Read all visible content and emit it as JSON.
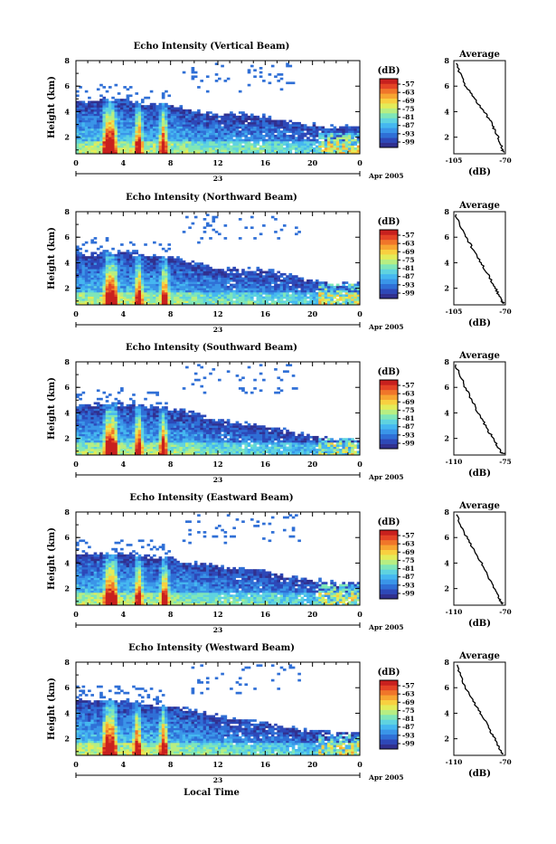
{
  "xlabel": "Local Time",
  "date_label": "Apr 2005",
  "day_label": "23",
  "x_ticks": [
    "0",
    "4",
    "8",
    "12",
    "16",
    "20",
    "0"
  ],
  "y_ticks": [
    "2",
    "4",
    "6",
    "8"
  ],
  "units_label": "(dB)",
  "colorbar_ticks": [
    "-57",
    "-63",
    "-69",
    "-75",
    "-81",
    "-87",
    "-93",
    "-99"
  ],
  "colors": {
    "scale": [
      "#30308f",
      "#2d48b8",
      "#2f6fd6",
      "#3a95e8",
      "#45b7f0",
      "#5fd3e0",
      "#7fe6b8",
      "#b7ee82",
      "#e3ec58",
      "#f8d040",
      "#f7a532",
      "#f0762a",
      "#e44426",
      "#c8201e"
    ]
  },
  "panels": [
    {
      "title": "Echo Intensity (Vertical Beam)",
      "ylabel": "Height (km)",
      "avg_title": "Average",
      "avg_xlabel": "(dB)",
      "avg_xticks": [
        "-105",
        "-70"
      ]
    },
    {
      "title": "Echo Intensity (Northward Beam)",
      "ylabel": "Height (km)",
      "avg_title": "Average",
      "avg_xlabel": "(dB)",
      "avg_xticks": [
        "-105",
        "-70"
      ]
    },
    {
      "title": "Echo Intensity (Southward Beam)",
      "ylabel": "Height (km)",
      "avg_title": "Average",
      "avg_xlabel": "(dB)",
      "avg_xticks": [
        "-110",
        "-75"
      ]
    },
    {
      "title": "Echo Intensity (Eastward Beam)",
      "ylabel": "Height (km)",
      "avg_title": "Average",
      "avg_xlabel": "(dB)",
      "avg_xticks": [
        "-110",
        "-70"
      ]
    },
    {
      "title": "Echo Intensity (Westward Beam)",
      "ylabel": "Height (km)",
      "avg_title": "Average",
      "avg_xlabel": "(dB)",
      "avg_xticks": [
        "-110",
        "-70"
      ]
    }
  ],
  "chart_data": [
    {
      "type": "heatmap",
      "title": "Echo Intensity (Vertical Beam)",
      "xlabel": "",
      "ylabel": "Height (km)",
      "xlim": [
        0,
        24
      ],
      "ylim": [
        0.7,
        8
      ],
      "clim": [
        -99,
        -57
      ],
      "echo_top_km": [
        {
          "t": 0,
          "h": 4.8
        },
        {
          "t": 2,
          "h": 5.0
        },
        {
          "t": 4,
          "h": 5.0
        },
        {
          "t": 6,
          "h": 4.6
        },
        {
          "t": 8,
          "h": 4.6
        },
        {
          "t": 10,
          "h": 4.1
        },
        {
          "t": 12,
          "h": 3.8
        },
        {
          "t": 14,
          "h": 3.8
        },
        {
          "t": 16,
          "h": 3.6
        },
        {
          "t": 18,
          "h": 3.2
        },
        {
          "t": 20,
          "h": 3.0
        },
        {
          "t": 22,
          "h": 2.8
        },
        {
          "t": 24,
          "h": 2.8
        }
      ],
      "convective_peaks_hours": [
        2.6,
        3.1,
        5.3,
        7.4
      ]
    },
    {
      "type": "line",
      "title": "Average",
      "xlabel": "(dB)",
      "ylabel": "",
      "xlim": [
        -105,
        -70
      ],
      "ylim": [
        0.7,
        8
      ],
      "x": [
        -103,
        -101,
        -98,
        -94,
        -90,
        -86,
        -82,
        -79,
        -77,
        -75,
        -73,
        -72,
        -71
      ],
      "y": [
        7.8,
        7.0,
        6.2,
        5.5,
        4.9,
        4.2,
        3.6,
        3.0,
        2.5,
        2.0,
        1.5,
        1.0,
        0.8
      ]
    },
    {
      "type": "heatmap",
      "title": "Echo Intensity (Northward Beam)",
      "xlabel": "",
      "ylabel": "Height (km)",
      "xlim": [
        0,
        24
      ],
      "ylim": [
        0.7,
        8
      ],
      "clim": [
        -99,
        -57
      ],
      "echo_top_km": [
        {
          "t": 0,
          "h": 4.6
        },
        {
          "t": 2,
          "h": 4.8
        },
        {
          "t": 4,
          "h": 4.8
        },
        {
          "t": 6,
          "h": 4.6
        },
        {
          "t": 8,
          "h": 4.4
        },
        {
          "t": 10,
          "h": 4.0
        },
        {
          "t": 12,
          "h": 3.6
        },
        {
          "t": 14,
          "h": 3.5
        },
        {
          "t": 16,
          "h": 3.4
        },
        {
          "t": 18,
          "h": 3.1
        },
        {
          "t": 20,
          "h": 2.6
        },
        {
          "t": 22,
          "h": 2.4
        },
        {
          "t": 24,
          "h": 2.4
        }
      ],
      "convective_peaks_hours": [
        2.7,
        3.2,
        5.3,
        7.5
      ]
    },
    {
      "type": "line",
      "title": "Average",
      "xlabel": "(dB)",
      "ylabel": "",
      "xlim": [
        -105,
        -70
      ],
      "ylim": [
        0.7,
        8
      ],
      "x": [
        -104,
        -101,
        -98,
        -94,
        -91,
        -87,
        -84,
        -81,
        -78,
        -76,
        -74,
        -72,
        -71
      ],
      "y": [
        7.8,
        7.0,
        6.2,
        5.5,
        4.8,
        4.1,
        3.5,
        2.9,
        2.3,
        1.8,
        1.3,
        0.9,
        0.8
      ]
    },
    {
      "type": "heatmap",
      "title": "Echo Intensity (Southward Beam)",
      "xlabel": "",
      "ylabel": "Height (km)",
      "xlim": [
        0,
        24
      ],
      "ylim": [
        0.7,
        8
      ],
      "clim": [
        -99,
        -57
      ],
      "echo_top_km": [
        {
          "t": 0,
          "h": 4.6
        },
        {
          "t": 2,
          "h": 4.7
        },
        {
          "t": 4,
          "h": 4.8
        },
        {
          "t": 6,
          "h": 4.5
        },
        {
          "t": 8,
          "h": 4.4
        },
        {
          "t": 10,
          "h": 4.0
        },
        {
          "t": 12,
          "h": 3.4
        },
        {
          "t": 14,
          "h": 3.2
        },
        {
          "t": 16,
          "h": 3.0
        },
        {
          "t": 18,
          "h": 2.6
        },
        {
          "t": 20,
          "h": 2.2
        },
        {
          "t": 22,
          "h": 2.0
        },
        {
          "t": 24,
          "h": 2.0
        }
      ],
      "convective_peaks_hours": [
        2.7,
        3.2,
        5.3,
        7.4
      ]
    },
    {
      "type": "line",
      "title": "Average",
      "xlabel": "(dB)",
      "ylabel": "",
      "xlim": [
        -110,
        -75
      ],
      "ylim": [
        0.7,
        8
      ],
      "x": [
        -109,
        -106,
        -103,
        -100,
        -97,
        -94,
        -91,
        -88,
        -85,
        -82,
        -80,
        -78,
        -76
      ],
      "y": [
        7.8,
        7.0,
        6.2,
        5.5,
        4.8,
        4.1,
        3.5,
        2.9,
        2.3,
        1.8,
        1.3,
        0.9,
        0.8
      ]
    },
    {
      "type": "heatmap",
      "title": "Echo Intensity (Eastward Beam)",
      "xlabel": "",
      "ylabel": "Height (km)",
      "xlim": [
        0,
        24
      ],
      "ylim": [
        0.7,
        8
      ],
      "clim": [
        -99,
        -57
      ],
      "echo_top_km": [
        {
          "t": 0,
          "h": 4.8
        },
        {
          "t": 2,
          "h": 4.8
        },
        {
          "t": 4,
          "h": 4.8
        },
        {
          "t": 6,
          "h": 4.6
        },
        {
          "t": 8,
          "h": 4.4
        },
        {
          "t": 10,
          "h": 4.1
        },
        {
          "t": 12,
          "h": 3.8
        },
        {
          "t": 14,
          "h": 3.6
        },
        {
          "t": 16,
          "h": 3.4
        },
        {
          "t": 18,
          "h": 3.0
        },
        {
          "t": 20,
          "h": 2.7
        },
        {
          "t": 22,
          "h": 2.4
        },
        {
          "t": 24,
          "h": 2.4
        }
      ],
      "convective_peaks_hours": [
        2.7,
        3.2,
        5.3,
        7.5
      ]
    },
    {
      "type": "line",
      "title": "Average",
      "xlabel": "(dB)",
      "ylabel": "",
      "xlim": [
        -110,
        -70
      ],
      "ylim": [
        0.7,
        8
      ],
      "x": [
        -108,
        -105,
        -101,
        -97,
        -93,
        -89,
        -86,
        -83,
        -80,
        -77,
        -75,
        -73,
        -72
      ],
      "y": [
        7.8,
        7.0,
        6.2,
        5.5,
        4.8,
        4.1,
        3.5,
        2.9,
        2.3,
        1.8,
        1.3,
        0.9,
        0.8
      ]
    },
    {
      "type": "heatmap",
      "title": "Echo Intensity (Westward Beam)",
      "xlabel": "",
      "ylabel": "Height (km)",
      "xlim": [
        0,
        24
      ],
      "ylim": [
        0.7,
        8
      ],
      "clim": [
        -99,
        -57
      ],
      "echo_top_km": [
        {
          "t": 0,
          "h": 5.0
        },
        {
          "t": 2,
          "h": 5.0
        },
        {
          "t": 4,
          "h": 5.0
        },
        {
          "t": 6,
          "h": 4.8
        },
        {
          "t": 8,
          "h": 4.6
        },
        {
          "t": 10,
          "h": 4.2
        },
        {
          "t": 12,
          "h": 3.8
        },
        {
          "t": 14,
          "h": 3.5
        },
        {
          "t": 16,
          "h": 3.2
        },
        {
          "t": 18,
          "h": 2.9
        },
        {
          "t": 20,
          "h": 2.6
        },
        {
          "t": 22,
          "h": 2.5
        },
        {
          "t": 24,
          "h": 2.5
        }
      ],
      "convective_peaks_hours": [
        2.6,
        3.1,
        5.2,
        7.4
      ]
    },
    {
      "type": "line",
      "title": "Average",
      "xlabel": "(dB)",
      "ylabel": "",
      "xlim": [
        -110,
        -70
      ],
      "ylim": [
        0.7,
        8
      ],
      "x": [
        -108,
        -105,
        -102,
        -98,
        -94,
        -90,
        -86,
        -83,
        -80,
        -77,
        -75,
        -73,
        -72
      ],
      "y": [
        7.8,
        7.0,
        6.2,
        5.5,
        4.8,
        4.1,
        3.5,
        2.9,
        2.3,
        1.8,
        1.3,
        0.9,
        0.8
      ]
    }
  ]
}
